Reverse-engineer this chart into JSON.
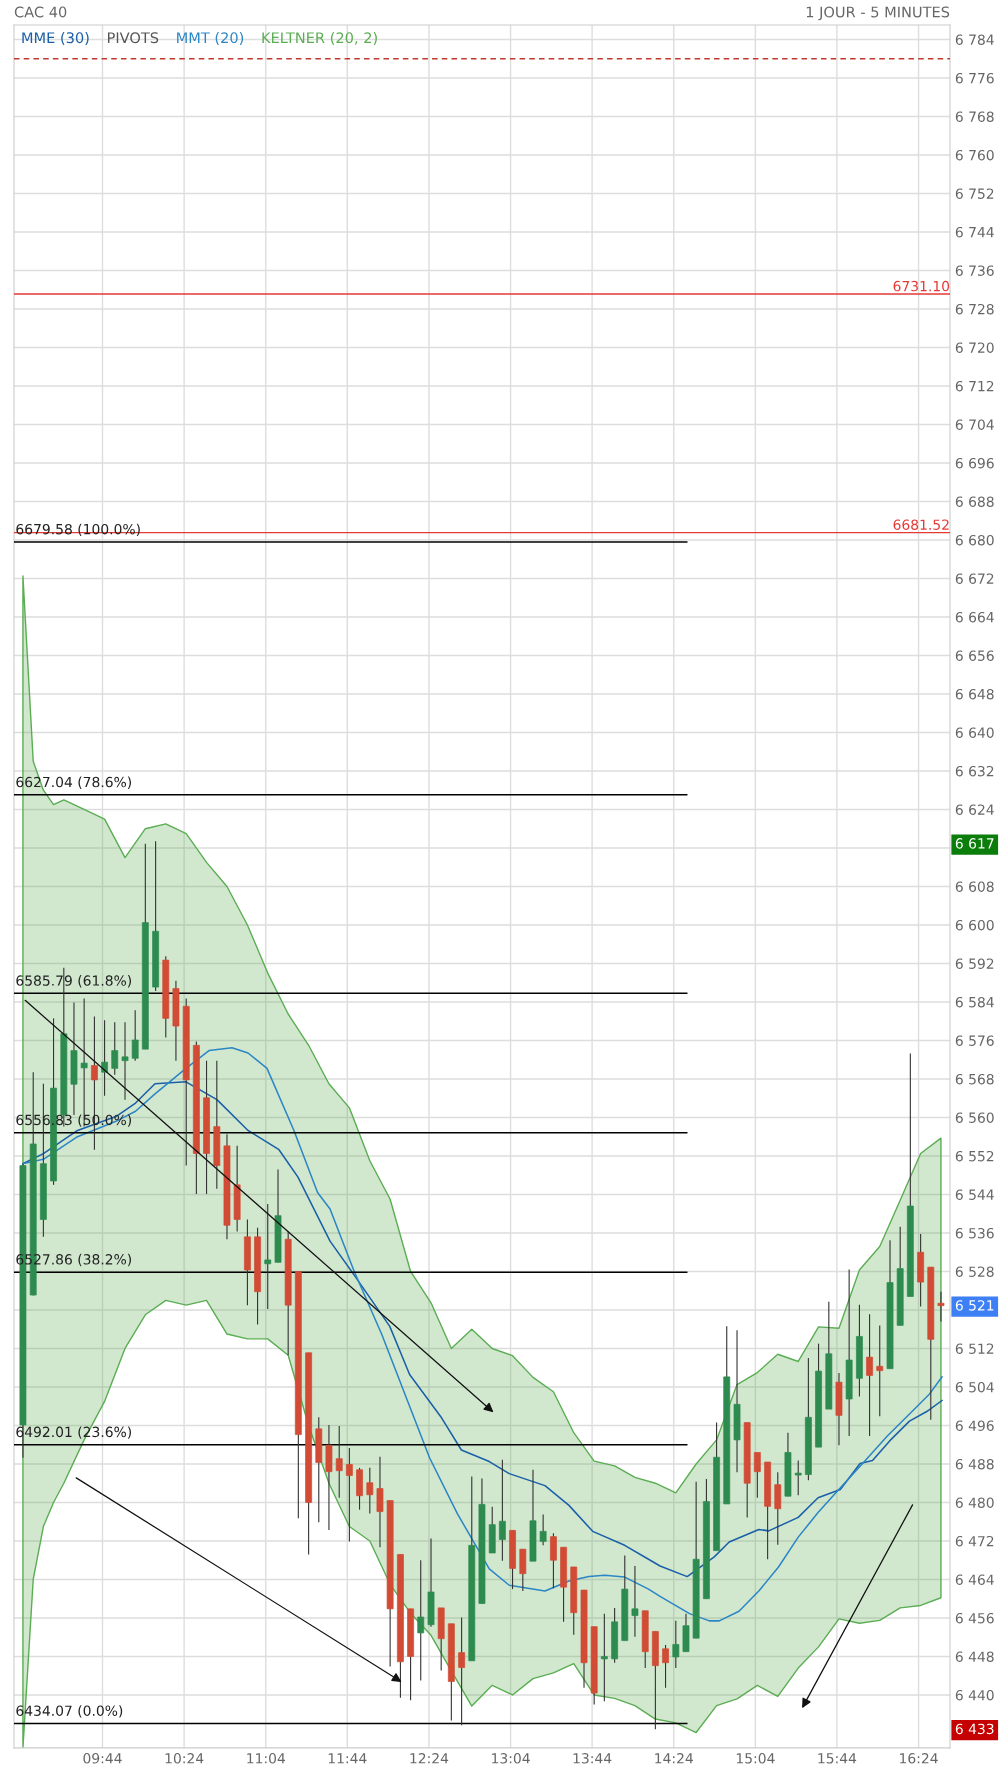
{
  "chart_data": {
    "type": "candlestick",
    "title": "CAC 40",
    "subtitle": "1 JOUR - 5 MINUTES",
    "x": [
      9.083,
      9.167,
      9.25,
      9.333,
      9.417,
      9.5,
      9.583,
      9.667,
      9.75,
      9.833,
      9.917,
      10.0,
      10.083,
      10.167,
      10.25,
      10.333,
      10.417,
      10.5,
      10.583,
      10.667,
      10.75,
      10.833,
      10.917,
      11.0,
      11.083,
      11.167,
      11.25,
      11.333,
      11.417,
      11.5,
      11.583,
      11.667,
      11.75,
      11.833,
      11.917,
      12.0,
      12.083,
      12.167,
      12.25,
      12.333,
      12.417,
      12.5,
      12.583,
      12.667,
      12.75,
      12.833,
      12.917,
      13.0,
      13.083,
      13.167,
      13.25,
      13.333,
      13.417,
      13.5,
      13.583,
      13.667,
      13.75,
      13.833,
      13.917,
      14.0,
      14.083,
      14.167,
      14.25,
      14.333,
      14.417,
      14.5,
      14.583,
      14.667,
      14.75,
      14.833,
      14.917,
      15.0,
      15.083,
      15.167,
      15.25,
      15.333,
      15.417,
      15.5,
      15.583,
      15.667,
      15.75,
      15.833,
      15.917,
      16.0,
      16.083,
      16.167,
      16.25,
      16.333,
      16.417,
      16.5,
      16.583
    ],
    "ohlc": [
      [
        6496.1,
        6550.4,
        6489.3,
        6550.0
      ],
      [
        6523.1,
        6569.4,
        6523.0,
        6554.5
      ],
      [
        6538.8,
        6567.0,
        6535.2,
        6550.4
      ],
      [
        6546.8,
        6580.6,
        6546.0,
        6566.1
      ],
      [
        6560.5,
        6591.1,
        6558.1,
        6577.4
      ],
      [
        6566.9,
        6583.9,
        6560.5,
        6573.9
      ],
      [
        6570.3,
        6584.7,
        6558.1,
        6571.3
      ],
      [
        6570.8,
        6581.0,
        6553.3,
        6567.8
      ],
      [
        6569.4,
        6580.2,
        6564.5,
        6571.5
      ],
      [
        6570.2,
        6579.8,
        6568.9,
        6573.9
      ],
      [
        6571.8,
        6579.8,
        6563.7,
        6572.6
      ],
      [
        6572.3,
        6582.3,
        6571.8,
        6576.1
      ],
      [
        6574.2,
        6616.9,
        6574.2,
        6600.5
      ],
      [
        6587.1,
        6617.4,
        6586.3,
        6598.7
      ],
      [
        6592.7,
        6593.5,
        6576.6,
        6580.6
      ],
      [
        6586.8,
        6588.4,
        6571.8,
        6579.0
      ],
      [
        6583.1,
        6584.7,
        6550.0,
        6567.8
      ],
      [
        6575.0,
        6575.8,
        6544.1,
        6552.5
      ],
      [
        6564.1,
        6571.8,
        6544.1,
        6552.5
      ],
      [
        6558.1,
        6571.8,
        6545.2,
        6550.0
      ],
      [
        6554.1,
        6556.5,
        6534.7,
        6537.6
      ],
      [
        6546.0,
        6554.1,
        6536.3,
        6538.8
      ],
      [
        6535.2,
        6538.8,
        6521.0,
        6528.3
      ],
      [
        6535.2,
        6537.1,
        6517.0,
        6523.8
      ],
      [
        6529.6,
        6542.0,
        6520.2,
        6530.4
      ],
      [
        6529.9,
        6549.2,
        6529.9,
        6539.6
      ],
      [
        6534.7,
        6536.3,
        6510.6,
        6521.0
      ],
      [
        6528.0,
        6528.0,
        6476.7,
        6494.1
      ],
      [
        6511.1,
        6511.1,
        6469.2,
        6480.0
      ],
      [
        6495.3,
        6497.7,
        6475.9,
        6488.3
      ],
      [
        6491.9,
        6496.1,
        6474.3,
        6486.4
      ],
      [
        6489.1,
        6495.9,
        6481.0,
        6486.6
      ],
      [
        6487.9,
        6491.3,
        6471.9,
        6485.6
      ],
      [
        6486.8,
        6487.2,
        6478.5,
        6481.4
      ],
      [
        6484.1,
        6487.2,
        6477.7,
        6481.6
      ],
      [
        6482.9,
        6489.5,
        6470.7,
        6478.1
      ],
      [
        6480.4,
        6480.4,
        6445.9,
        6457.9
      ],
      [
        6469.2,
        6469.2,
        6439.4,
        6446.9
      ],
      [
        6457.9,
        6457.9,
        6438.9,
        6448.0
      ],
      [
        6452.9,
        6468.0,
        6443.0,
        6456.2
      ],
      [
        6454.6,
        6472.5,
        6454.2,
        6461.4
      ],
      [
        6458.1,
        6458.1,
        6445.1,
        6451.7
      ],
      [
        6454.8,
        6454.8,
        6434.7,
        6442.8
      ],
      [
        6448.8,
        6456.1,
        6433.7,
        6445.7
      ],
      [
        6447.1,
        6485.4,
        6447.1,
        6471.1
      ],
      [
        6459.0,
        6485.0,
        6459.0,
        6479.6
      ],
      [
        6469.5,
        6479.1,
        6469.5,
        6475.4
      ],
      [
        6472.3,
        6488.9,
        6467.9,
        6476.1
      ],
      [
        6474.2,
        6474.2,
        6462.0,
        6466.3
      ],
      [
        6470.3,
        6470.3,
        6461.6,
        6465.2
      ],
      [
        6467.8,
        6486.8,
        6467.8,
        6476.2
      ],
      [
        6471.9,
        6477.5,
        6471.1,
        6474.0
      ],
      [
        6472.9,
        6473.6,
        6462.2,
        6468.0
      ],
      [
        6470.7,
        6470.7,
        6455.2,
        6462.4
      ],
      [
        6466.6,
        6466.6,
        6452.5,
        6457.1
      ],
      [
        6461.8,
        6461.8,
        6441.5,
        6446.7
      ],
      [
        6454.2,
        6454.2,
        6438.0,
        6440.4
      ],
      [
        6447.5,
        6456.9,
        6438.7,
        6448.0
      ],
      [
        6447.5,
        6458.1,
        6446.7,
        6455.2
      ],
      [
        6451.3,
        6469.0,
        6451.3,
        6462.0
      ],
      [
        6456.5,
        6466.8,
        6452.1,
        6457.9
      ],
      [
        6457.5,
        6457.5,
        6445.6,
        6449.0
      ],
      [
        6453.2,
        6453.2,
        6432.9,
        6446.1
      ],
      [
        6449.6,
        6450.4,
        6441.5,
        6446.7
      ],
      [
        6447.9,
        6455.4,
        6445.6,
        6450.5
      ],
      [
        6449.0,
        6456.9,
        6449.0,
        6454.4
      ],
      [
        6451.8,
        6484.3,
        6451.8,
        6468.2
      ],
      [
        6460.0,
        6484.9,
        6460.0,
        6480.2
      ],
      [
        6470.0,
        6496.6,
        6470.0,
        6489.4
      ],
      [
        6479.7,
        6516.6,
        6479.7,
        6506.1
      ],
      [
        6493.0,
        6515.8,
        6486.3,
        6500.4
      ],
      [
        6496.6,
        6496.6,
        6476.9,
        6484.0
      ],
      [
        6490.4,
        6490.4,
        6481.0,
        6486.4
      ],
      [
        6488.4,
        6488.4,
        6468.2,
        6479.2
      ],
      [
        6483.7,
        6486.3,
        6471.2,
        6478.7
      ],
      [
        6481.3,
        6494.5,
        6481.3,
        6490.4
      ],
      [
        6485.7,
        6488.7,
        6481.5,
        6485.9
      ],
      [
        6485.8,
        6510.0,
        6484.6,
        6497.7
      ],
      [
        6491.5,
        6513.0,
        6491.5,
        6507.3
      ],
      [
        6499.4,
        6521.7,
        6499.4,
        6510.9
      ],
      [
        6505.0,
        6506.9,
        6491.9,
        6498.1
      ],
      [
        6501.5,
        6528.4,
        6493.8,
        6509.6
      ],
      [
        6505.8,
        6521.1,
        6502.0,
        6514.5
      ],
      [
        6510.2,
        6519.1,
        6493.8,
        6506.4
      ],
      [
        6508.3,
        6516.8,
        6497.9,
        6507.4
      ],
      [
        6507.8,
        6534.5,
        6507.8,
        6525.7
      ],
      [
        6516.8,
        6537.3,
        6516.8,
        6528.6
      ],
      [
        6522.8,
        6573.3,
        6522.8,
        6541.6
      ],
      [
        6532.0,
        6535.8,
        6520.7,
        6525.8
      ],
      [
        6528.9,
        6528.9,
        6497.2,
        6513.9
      ],
      [
        6521.4,
        6523.8,
        6517.6,
        6520.9
      ]
    ],
    "series": [
      {
        "name": "MME (30)",
        "type": "line",
        "color": "#1a5fa8",
        "x": [
          9.083,
          9.25,
          9.529,
          9.843,
          10.003,
          10.162,
          10.415,
          10.668,
          10.922,
          11.175,
          11.33,
          11.592,
          11.788,
          12.08,
          12.242,
          12.503,
          12.665,
          12.893,
          13.056,
          13.348,
          13.544,
          13.738,
          13.999,
          14.194,
          14.288,
          14.51,
          14.731,
          14.853,
          15.095,
          15.176,
          15.417,
          15.579,
          15.761,
          15.922,
          16.024,
          16.164,
          16.326,
          16.467,
          16.592
        ],
        "values": [
          6550.4,
          6552.5,
          6557.3,
          6560.2,
          6563.0,
          6567.0,
          6567.4,
          6563.7,
          6557.3,
          6553.3,
          6547.6,
          6534.3,
          6527.3,
          6516.6,
          6506.6,
          6497.6,
          6490.9,
          6488.5,
          6486.0,
          6483.5,
          6479.4,
          6474.0,
          6471.1,
          6468.2,
          6466.8,
          6464.6,
          6468.7,
          6471.8,
          6474.4,
          6474.1,
          6476.9,
          6481.0,
          6482.7,
          6488.1,
          6488.7,
          6492.8,
          6496.9,
          6498.9,
          6501.2
        ]
      },
      {
        "name": "MMT (20)",
        "type": "line",
        "color": "#2b86c5",
        "x": [
          9.083,
          9.25,
          9.529,
          9.843,
          10.003,
          10.162,
          10.415,
          10.603,
          10.791,
          10.922,
          11.077,
          11.297,
          11.49,
          11.592,
          11.788,
          12.015,
          12.242,
          12.405,
          12.632,
          12.763,
          12.893,
          13.056,
          13.348,
          13.544,
          13.707,
          13.837,
          13.999,
          14.194,
          14.288,
          14.529,
          14.691,
          14.772,
          14.933,
          15.095,
          15.256,
          15.417,
          15.579,
          15.741,
          15.943,
          16.145,
          16.326,
          16.488,
          16.592
        ],
        "values": [
          6550.4,
          6551.3,
          6556.0,
          6559.2,
          6561.3,
          6564.9,
          6570.2,
          6573.9,
          6574.5,
          6573.4,
          6570.2,
          6557.3,
          6544.4,
          6541.0,
          6528.1,
          6514.9,
          6500.0,
          6489.3,
          6477.7,
          6471.9,
          6466.2,
          6462.8,
          6461.6,
          6463.7,
          6464.6,
          6464.9,
          6464.5,
          6462.0,
          6460.5,
          6456.9,
          6455.4,
          6455.4,
          6457.4,
          6461.6,
          6466.6,
          6472.8,
          6477.9,
          6482.5,
          6488.1,
          6493.8,
          6498.4,
          6502.5,
          6506.1
        ]
      },
      {
        "name": "KELTNER (20, 2)",
        "type": "area",
        "color": "#5aad52",
        "x": [
          9.083,
          9.167,
          9.25,
          9.333,
          9.417,
          9.583,
          9.75,
          9.917,
          10.083,
          10.25,
          10.417,
          10.583,
          10.75,
          10.917,
          11.083,
          11.25,
          11.417,
          11.583,
          11.75,
          11.917,
          12.083,
          12.25,
          12.417,
          12.583,
          12.75,
          12.917,
          13.083,
          13.25,
          13.417,
          13.583,
          13.75,
          13.917,
          14.083,
          14.25,
          14.417,
          14.583,
          14.75,
          14.917,
          15.083,
          15.25,
          15.417,
          15.583,
          15.75,
          15.917,
          16.083,
          16.25,
          16.417,
          16.583
        ],
        "values": [
          null,
          null,
          null,
          null,
          null,
          null,
          null,
          null,
          null,
          null,
          null,
          null,
          null,
          null,
          null,
          null,
          null,
          null,
          null,
          null,
          null,
          null,
          null,
          null,
          null,
          null,
          null,
          null,
          null,
          null,
          null,
          null,
          null,
          null,
          null,
          null,
          null,
          null,
          null,
          null,
          null,
          null,
          null,
          null,
          null,
          null,
          null,
          null
        ],
        "upper": [
          6672.5,
          6634,
          6628,
          6625,
          6626,
          6624,
          6622,
          6614,
          6620,
          6621,
          6619,
          6613,
          6608,
          6600,
          6590,
          6581.5,
          6575,
          6567,
          6562,
          6551,
          6543,
          6528,
          6521.5,
          6512,
          6516,
          6512,
          6510.5,
          6506,
          6503,
          6494.5,
          6488.6,
          6487.6,
          6485.2,
          6484,
          6482,
          6488,
          6493,
          6504.5,
          6507,
          6510.8,
          6509.3,
          6516.5,
          6516.2,
          6528.3,
          6533.2,
          6542.8,
          6552.5,
          6555.7
        ],
        "lower": [
          6429,
          6464,
          6475,
          6480,
          6484,
          6493,
          6501,
          6512,
          6519,
          6522,
          6521,
          6522,
          6515,
          6514,
          6514,
          6510.6,
          6496,
          6484,
          6475,
          6472,
          6463,
          6457,
          6452.4,
          6445,
          6437.7,
          6442,
          6440,
          6443.4,
          6444.6,
          6446.5,
          6440,
          6439.3,
          6437.8,
          6435,
          6434.2,
          6432.2,
          6437.8,
          6439.2,
          6442,
          6439.7,
          6445.6,
          6450,
          6455.8,
          6454.9,
          6455.5,
          6458.1,
          6458.6,
          6460.2
        ]
      },
      {
        "name": "6679.58 (100.0%)",
        "type": "line",
        "color": "#000000",
        "x": [
          9.01,
          14.506
        ],
        "values": [
          6679.58,
          6679.58
        ]
      },
      {
        "name": "6627.04 (78.6%)",
        "type": "line",
        "color": "#000000",
        "x": [
          9.01,
          14.506
        ],
        "values": [
          6627.04,
          6627.04
        ]
      },
      {
        "name": "6585.79 (61.8%)",
        "type": "line",
        "color": "#000000",
        "x": [
          9.01,
          14.506
        ],
        "values": [
          6585.79,
          6585.79
        ]
      },
      {
        "name": "6556.83 (50.0%)",
        "type": "line",
        "color": "#000000",
        "x": [
          9.01,
          14.506
        ],
        "values": [
          6556.83,
          6556.83
        ]
      },
      {
        "name": "6527.86 (38.2%)",
        "type": "line",
        "color": "#000000",
        "x": [
          9.01,
          14.506
        ],
        "values": [
          6527.86,
          6527.86
        ]
      },
      {
        "name": "6492.01 (23.6%)",
        "type": "line",
        "color": "#000000",
        "x": [
          9.01,
          14.506
        ],
        "values": [
          6492.01,
          6492.01
        ]
      },
      {
        "name": "6434.07 (0.0%)",
        "type": "line",
        "color": "#000000",
        "x": [
          9.01,
          14.506
        ],
        "values": [
          6434.07,
          6434.07
        ]
      }
    ],
    "ref_lines": [
      {
        "axis": "y",
        "value": 6780,
        "color": "#c0392b",
        "line_style": "dashed"
      },
      {
        "axis": "y",
        "value": 6731.1,
        "label": "6731.10",
        "color": "#e53935",
        "line_style": "solid"
      },
      {
        "axis": "y",
        "value": 6681.52,
        "label": "6681.52",
        "color": "#e53935",
        "line_style": "solid"
      }
    ],
    "annotations": [
      "PIVOTS"
    ],
    "xlim": [
      9.01,
      16.657
    ],
    "ylim": [
      6429,
      6787
    ],
    "xticks": [
      {
        "value": 9.733,
        "label": "09:44"
      },
      {
        "value": 10.4,
        "label": "10:24"
      },
      {
        "value": 11.067,
        "label": "11:04"
      },
      {
        "value": 11.733,
        "label": "11:44"
      },
      {
        "value": 12.4,
        "label": "12:24"
      },
      {
        "value": 13.067,
        "label": "13:04"
      },
      {
        "value": 13.733,
        "label": "13:44"
      },
      {
        "value": 14.4,
        "label": "14:24"
      },
      {
        "value": 15.067,
        "label": "15:04"
      },
      {
        "value": 15.733,
        "label": "15:44"
      },
      {
        "value": 16.4,
        "label": "16:24"
      }
    ],
    "yticks": [
      {
        "value": 6440,
        "label": "6 440"
      },
      {
        "value": 6448,
        "label": "6 448"
      },
      {
        "value": 6456,
        "label": "6 456"
      },
      {
        "value": 6464,
        "label": "6 464"
      },
      {
        "value": 6472,
        "label": "6 472"
      },
      {
        "value": 6480,
        "label": "6 480"
      },
      {
        "value": 6488,
        "label": "6 488"
      },
      {
        "value": 6496,
        "label": "6 496"
      },
      {
        "value": 6504,
        "label": "6 504"
      },
      {
        "value": 6512,
        "label": "6 512"
      },
      {
        "value": 6520,
        "label": null
      },
      {
        "value": 6528,
        "label": "6 528"
      },
      {
        "value": 6536,
        "label": "6 536"
      },
      {
        "value": 6544,
        "label": "6 544"
      },
      {
        "value": 6552,
        "label": "6 552"
      },
      {
        "value": 6560,
        "label": "6 560"
      },
      {
        "value": 6568,
        "label": "6 568"
      },
      {
        "value": 6576,
        "label": "6 576"
      },
      {
        "value": 6584,
        "label": "6 584"
      },
      {
        "value": 6592,
        "label": "6 592"
      },
      {
        "value": 6600,
        "label": "6 600"
      },
      {
        "value": 6608,
        "label": "6 608"
      },
      {
        "value": 6616,
        "label": null
      },
      {
        "value": 6624,
        "label": "6 624"
      },
      {
        "value": 6632,
        "label": "6 632"
      },
      {
        "value": 6640,
        "label": "6 640"
      },
      {
        "value": 6648,
        "label": "6 648"
      },
      {
        "value": 6656,
        "label": "6 656"
      },
      {
        "value": 6664,
        "label": "6 664"
      },
      {
        "value": 6672,
        "label": "6 672"
      },
      {
        "value": 6680,
        "label": "6 680"
      },
      {
        "value": 6688,
        "label": "6 688"
      },
      {
        "value": 6696,
        "label": "6 696"
      },
      {
        "value": 6704,
        "label": "6 704"
      },
      {
        "value": 6712,
        "label": "6 712"
      },
      {
        "value": 6720,
        "label": "6 720"
      },
      {
        "value": 6728,
        "label": "6 728"
      },
      {
        "value": 6736,
        "label": "6 736"
      },
      {
        "value": 6744,
        "label": "6 744"
      },
      {
        "value": 6752,
        "label": "6 752"
      },
      {
        "value": 6760,
        "label": "6 760"
      },
      {
        "value": 6768,
        "label": "6 768"
      },
      {
        "value": 6776,
        "label": "6 776"
      },
      {
        "value": 6784,
        "label": "6 784"
      },
      {
        "value": 6617,
        "label": "6 617"
      },
      {
        "value": 6521,
        "label": "6 521"
      },
      {
        "value": 6433,
        "label": "6 433"
      }
    ],
    "grid": true,
    "legend": "top left"
  }
}
